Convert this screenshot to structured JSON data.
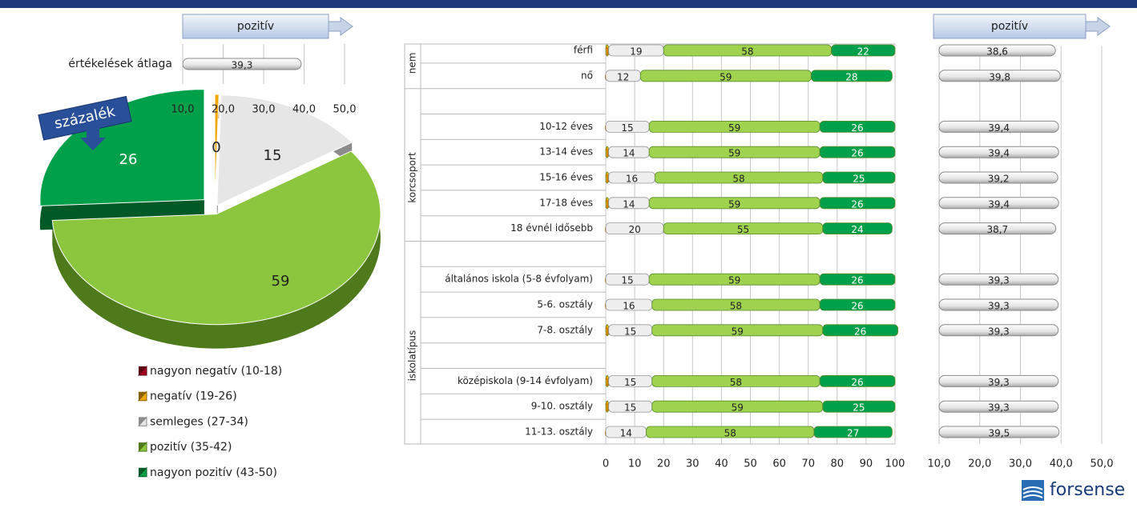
{
  "chart_data": [
    {
      "type": "pie",
      "annotation": "százalék",
      "categories": [
        "nagyon negatív (10-18)",
        "negatív (19-26)",
        "semleges (27-34)",
        "pozitív (35-42)",
        "nagyon pozitív (43-50)"
      ],
      "values": [
        0,
        0.4,
        15,
        59,
        26
      ],
      "value_labels": [
        null,
        "0",
        "15",
        "59",
        "26"
      ],
      "colors": [
        "#a50021",
        "#f0a800",
        "#e6e6e6",
        "#8cc63f",
        "#00a04a"
      ]
    },
    {
      "type": "hbar",
      "header": "pozitív",
      "categories": [
        "értékelések átlaga"
      ],
      "values": [
        39.3
      ],
      "value_labels": [
        "39,3"
      ],
      "color": "#e8e8e8",
      "xlim": [
        10,
        50
      ],
      "xticks": [
        {
          "value": 10,
          "label": "10,0"
        },
        {
          "value": 20,
          "label": "20,0"
        },
        {
          "value": 30,
          "label": "30,0"
        },
        {
          "value": 40,
          "label": "40,0"
        },
        {
          "value": 50,
          "label": "50,0"
        }
      ]
    },
    {
      "type": "stacked_hbar",
      "groups": [
        "nem",
        "korcsoport",
        "iskolatípus"
      ],
      "categories": [
        "férfi",
        "nő",
        null,
        "10-12 éves",
        "13-14 éves",
        "15-16 éves",
        "17-18 éves",
        "18 évnél idősebb",
        null,
        "általános iskola (5-8 évfolyam)",
        "5-6. osztály",
        "7-8. osztály",
        null,
        "középiskola (9-14 évfolyam)",
        "9-10. osztály",
        "11-13. osztály"
      ],
      "series": [
        {
          "color": "#f0a800",
          "values": [
            1,
            0,
            null,
            0,
            1,
            1,
            1,
            0,
            null,
            0,
            0,
            1,
            null,
            1,
            1,
            0
          ]
        },
        {
          "color": "#eeeeee",
          "values": [
            19,
            12,
            null,
            15,
            14,
            16,
            14,
            20,
            null,
            15,
            16,
            15,
            null,
            15,
            15,
            14
          ]
        },
        {
          "color": "#9fd34f",
          "values": [
            58,
            59,
            null,
            59,
            59,
            58,
            59,
            55,
            null,
            59,
            58,
            59,
            null,
            58,
            59,
            58
          ]
        },
        {
          "color": "#00a04a",
          "values": [
            22,
            28,
            null,
            26,
            26,
            25,
            26,
            24,
            null,
            26,
            26,
            26,
            null,
            26,
            25,
            27
          ]
        }
      ],
      "xlim": [
        0,
        100
      ],
      "xticks": [
        0,
        10,
        20,
        30,
        40,
        50,
        60,
        70,
        80,
        90,
        100
      ]
    },
    {
      "type": "hbar",
      "header": "pozitív",
      "values": [
        38.6,
        39.8,
        null,
        39.4,
        39.4,
        39.2,
        39.4,
        38.7,
        null,
        39.3,
        39.3,
        39.3,
        null,
        39.3,
        39.3,
        39.5
      ],
      "value_labels": [
        "38,6",
        "39,8",
        null,
        "39,4",
        "39,4",
        "39,2",
        "39,4",
        "38,7",
        null,
        "39,3",
        "39,3",
        "39,3",
        null,
        "39,3",
        "39,3",
        "39,5"
      ],
      "color": "#e8e8e8",
      "xlim": [
        10,
        50
      ],
      "xticks": [
        {
          "value": 10,
          "label": "10,0"
        },
        {
          "value": 20,
          "label": "20,0"
        },
        {
          "value": 30,
          "label": "30,0"
        },
        {
          "value": 40,
          "label": "40,0"
        },
        {
          "value": 50,
          "label": "50,0"
        }
      ]
    }
  ],
  "logo": "forsense"
}
